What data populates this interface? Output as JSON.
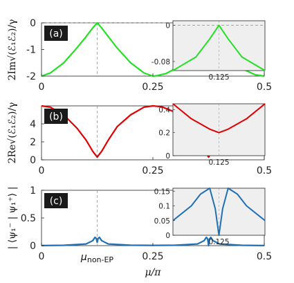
{
  "chart_data": [
    {
      "panel": "(a)",
      "type": "line",
      "ylabel": "2Im√(ℰ₁ℰ₂)/γ",
      "xlim": [
        0,
        0.5
      ],
      "ylim": [
        -2,
        0
      ],
      "xticks": [
        "0",
        "0.25",
        "0.5"
      ],
      "yticks": [
        "0",
        "-1",
        "-2"
      ],
      "color": "#22e022",
      "series": [
        {
          "x": [
            0,
            0.02,
            0.05,
            0.08,
            0.1,
            0.115,
            0.125,
            0.135,
            0.15,
            0.17,
            0.2,
            0.23,
            0.25,
            0.26,
            0.28,
            0.3,
            0.33,
            0.35,
            0.36,
            0.375,
            0.39,
            0.4,
            0.42,
            0.45,
            0.48,
            0.5
          ],
          "y": [
            -2,
            -1.88,
            -1.5,
            -0.93,
            -0.52,
            -0.19,
            0,
            -0.19,
            -0.52,
            -0.95,
            -1.5,
            -1.88,
            -2,
            -1.98,
            -1.9,
            -1.72,
            -1.4,
            -1.1,
            -0.3,
            0,
            -0.3,
            -1.1,
            -1.4,
            -1.72,
            -1.95,
            -2
          ]
        }
      ],
      "inset": {
        "xticks": [
          "0.125"
        ],
        "yticks": [
          "0",
          "-0.08"
        ],
        "ylim": [
          -0.1,
          0.01
        ],
        "x": [
          0.365,
          0.37,
          0.373,
          0.375,
          0.377,
          0.38,
          0.385
        ],
        "y": [
          -0.1,
          -0.07,
          -0.03,
          0,
          -0.03,
          -0.07,
          -0.1
        ]
      },
      "vline_x": 0.125
    },
    {
      "panel": "(b)",
      "type": "line",
      "ylabel": "2Re√(ℰ₁ℰ₂)/γ",
      "xlim": [
        0,
        0.5
      ],
      "ylim": [
        0,
        6
      ],
      "xticks": [
        "0",
        "0.25",
        "0.5"
      ],
      "yticks": [
        "4",
        "2",
        "0"
      ],
      "color": "#e00000",
      "series": [
        {
          "x": [
            0,
            0.02,
            0.05,
            0.08,
            0.1,
            0.115,
            0.125,
            0.135,
            0.15,
            0.17,
            0.2,
            0.23,
            0.25,
            0.27,
            0.3,
            0.33,
            0.35,
            0.365,
            0.375,
            0.385,
            0.4,
            0.42,
            0.45,
            0.48,
            0.5
          ],
          "y": [
            6,
            5.85,
            5.0,
            3.5,
            2.2,
            0.95,
            0.3,
            0.95,
            2.2,
            3.7,
            5.0,
            5.85,
            6,
            5.9,
            5.3,
            4.1,
            2.9,
            1.2,
            0.3,
            1.2,
            2.9,
            4.1,
            5.3,
            5.9,
            6
          ]
        }
      ],
      "inset": {
        "xticks": [
          "0.125"
        ],
        "yticks": [
          "0.4",
          "0.2",
          "0"
        ],
        "ylim": [
          0,
          0.45
        ],
        "x": [
          0.35,
          0.36,
          0.37,
          0.375,
          0.38,
          0.39,
          0.4
        ],
        "y": [
          0.45,
          0.32,
          0.23,
          0.2,
          0.23,
          0.32,
          0.45
        ]
      },
      "vline_x": 0.125
    },
    {
      "panel": "(c)",
      "type": "line",
      "ylabel": "| ⟨ψ₁⁻ | ψ₁⁺⟩ |",
      "xlim": [
        0,
        0.5
      ],
      "ylim": [
        0,
        1
      ],
      "xticks": [
        "0",
        "0.25",
        "0.5"
      ],
      "yticks": [
        "1",
        "0.5",
        "0"
      ],
      "xlabel": "μ/π",
      "annotation": "μnon-EP",
      "color": "#1f6fb5",
      "series": [
        {
          "x": [
            0,
            0.05,
            0.1,
            0.115,
            0.12,
            0.123,
            0.125,
            0.127,
            0.13,
            0.135,
            0.15,
            0.2,
            0.25,
            0.3,
            0.35,
            0.365,
            0.37,
            0.373,
            0.375,
            0.377,
            0.38,
            0.385,
            0.4,
            0.45,
            0.5
          ],
          "y": [
            0.002,
            0.006,
            0.03,
            0.09,
            0.15,
            0.13,
            0.06,
            0.13,
            0.15,
            0.09,
            0.03,
            0.008,
            0.005,
            0.008,
            0.03,
            0.09,
            0.15,
            0.12,
            0.0,
            0.12,
            0.15,
            0.09,
            0.03,
            0.006,
            0.002
          ]
        }
      ],
      "inset": {
        "xticks": [
          "0.125"
        ],
        "yticks": [
          "0.15",
          "0.1",
          "0.05",
          "0"
        ],
        "ylim": [
          0,
          0.16
        ],
        "x": [
          0.35,
          0.36,
          0.365,
          0.37,
          0.373,
          0.375,
          0.377,
          0.38,
          0.385,
          0.39,
          0.4
        ],
        "y": [
          0.05,
          0.1,
          0.14,
          0.16,
          0.09,
          0.0,
          0.09,
          0.16,
          0.14,
          0.1,
          0.05
        ]
      },
      "vline_x": 0.125
    }
  ]
}
